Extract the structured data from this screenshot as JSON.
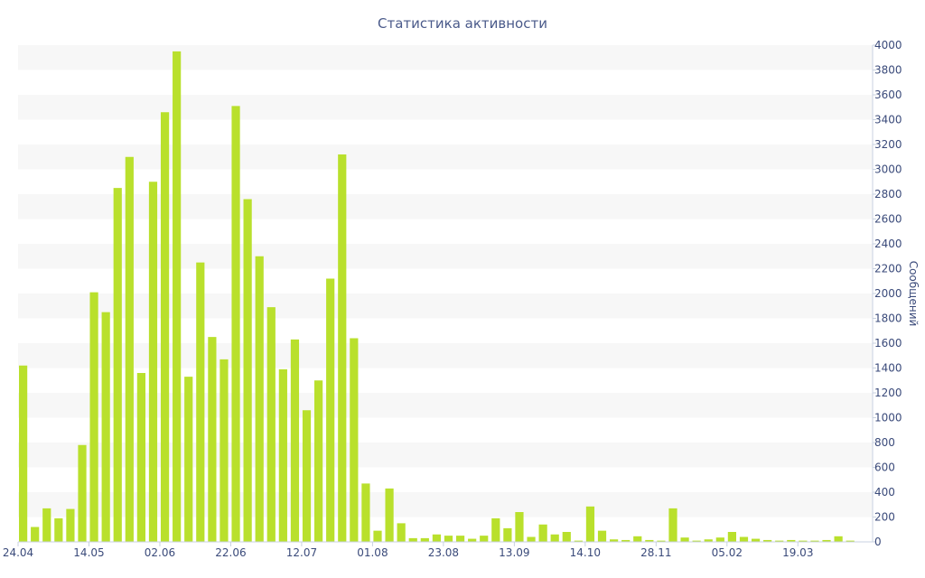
{
  "chart_data": {
    "type": "bar",
    "title": "Статистика активности",
    "ylabel": "Сообщений",
    "xlabel": "",
    "ylim": [
      0,
      4000
    ],
    "y_ticks": [
      0,
      200,
      400,
      600,
      800,
      1000,
      1200,
      1400,
      1600,
      1800,
      2000,
      2200,
      2400,
      2600,
      2800,
      3000,
      3200,
      3400,
      3600,
      3800,
      4000
    ],
    "x_tick_labels": [
      "24.04",
      "14.05",
      "02.06",
      "22.06",
      "12.07",
      "01.08",
      "23.08",
      "13.09",
      "14.10",
      "28.11",
      "05.02",
      "19.03"
    ],
    "x_tick_bar_index": [
      0,
      6,
      12,
      18,
      24,
      30,
      36,
      42,
      48,
      54,
      60,
      66
    ],
    "grid": "horizontal-bands",
    "bar_color": "#b9e02c",
    "band_color": "#f7f7f7",
    "values": [
      1420,
      120,
      270,
      190,
      265,
      780,
      2010,
      1850,
      2850,
      3100,
      1360,
      2900,
      3460,
      3950,
      1330,
      2250,
      1650,
      1470,
      3510,
      2760,
      2300,
      1890,
      1390,
      1630,
      1060,
      1300,
      2120,
      3120,
      1640,
      470,
      90,
      430,
      150,
      30,
      30,
      60,
      50,
      50,
      25,
      50,
      190,
      110,
      240,
      40,
      140,
      60,
      80,
      10,
      285,
      90,
      20,
      15,
      45,
      15,
      10,
      270,
      35,
      10,
      20,
      35,
      80,
      40,
      25,
      15,
      10,
      15,
      10,
      10,
      15,
      45,
      10
    ]
  }
}
